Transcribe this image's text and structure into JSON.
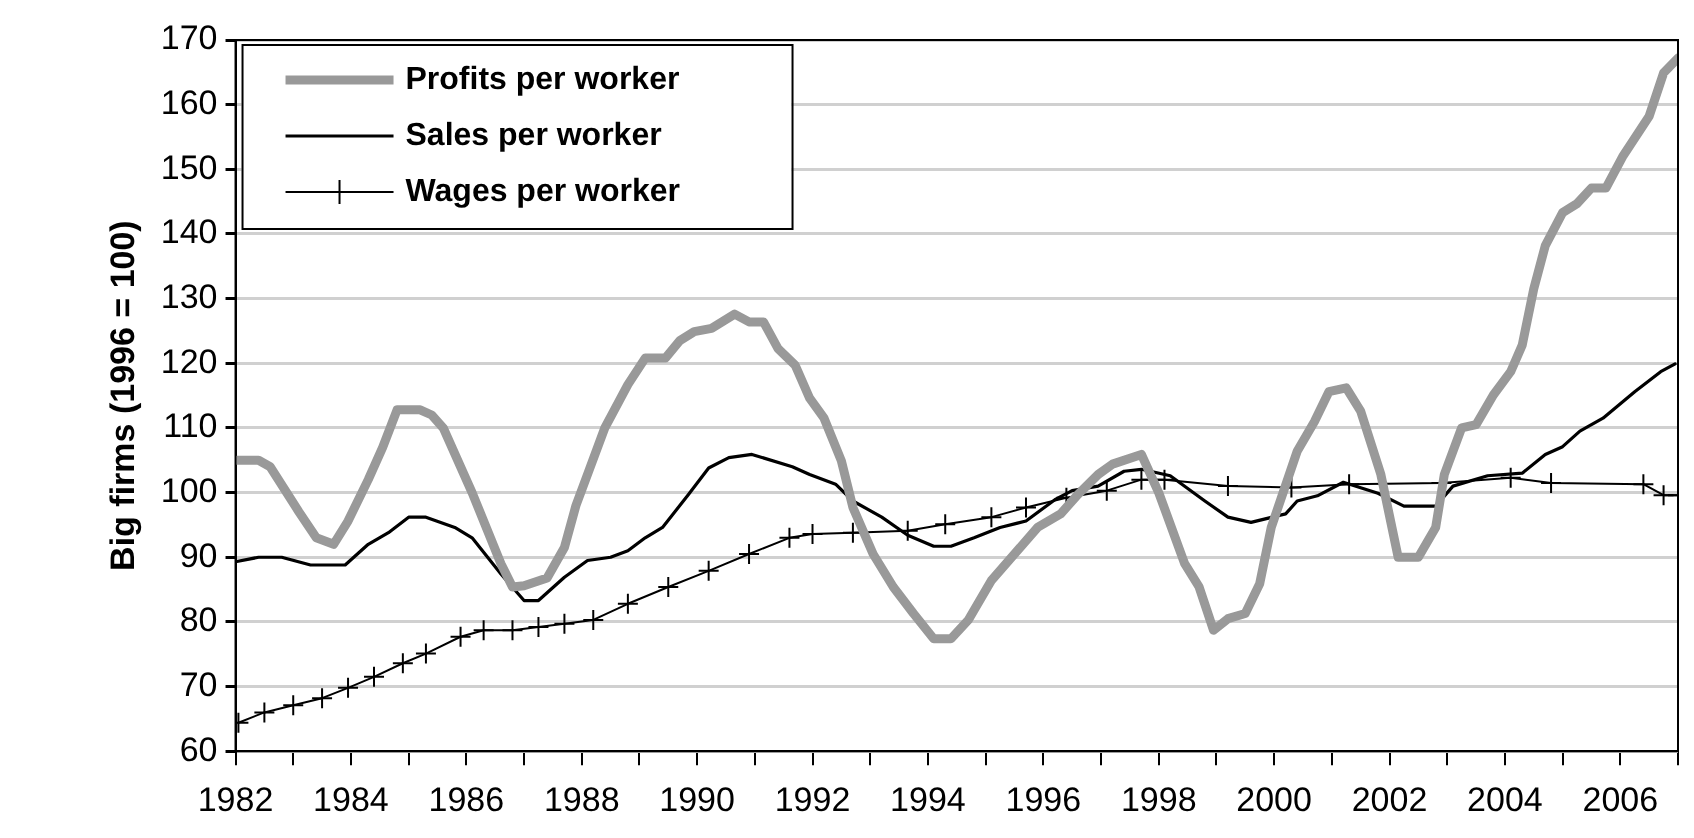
{
  "chart_data": {
    "type": "line",
    "ylabel": "Big firms (1996 = 100)",
    "xlim": [
      1982,
      2007
    ],
    "xticks": [
      1982,
      {
        "value": 1983,
        "label": null
      },
      1984,
      {
        "value": 1985,
        "label": null
      },
      1986,
      {
        "value": 1987,
        "label": null
      },
      1988,
      {
        "value": 1989,
        "label": null
      },
      1990,
      {
        "value": 1991,
        "label": null
      },
      1992,
      {
        "value": 1993,
        "label": null
      },
      1994,
      {
        "value": 1995,
        "label": null
      },
      1996,
      {
        "value": 1997,
        "label": null
      },
      1998,
      {
        "value": 1999,
        "label": null
      },
      2000,
      {
        "value": 2001,
        "label": null
      },
      2002,
      {
        "value": 2003,
        "label": null
      },
      2004,
      {
        "value": 2005,
        "label": null
      },
      2006,
      {
        "value": 2007,
        "label": null
      }
    ],
    "ylim": [
      60,
      170
    ],
    "yticks": [
      60,
      70,
      80,
      90,
      100,
      110,
      120,
      130,
      140,
      150,
      160,
      170
    ],
    "grid": "y",
    "legend": "top left",
    "series": [
      {
        "name": "Profits per worker",
        "color": "#999999",
        "marker": "none",
        "x": [
          1982.0,
          1982.4,
          1982.6,
          1983.1,
          1983.4,
          1983.7,
          1983.95,
          1984.3,
          1984.55,
          1984.8,
          1985.2,
          1985.4,
          1985.6,
          1986.1,
          1986.6,
          1986.8,
          1987.0,
          1987.4,
          1987.7,
          1987.9,
          1988.1,
          1988.4,
          1988.8,
          1989.1,
          1989.45,
          1989.7,
          1989.95,
          1990.25,
          1990.65,
          1990.9,
          1991.15,
          1991.4,
          1991.7,
          1991.95,
          1992.2,
          1992.5,
          1992.7,
          1993.05,
          1993.4,
          1993.75,
          1994.1,
          1994.4,
          1994.7,
          1995.1,
          1995.5,
          1995.9,
          1996.3,
          1996.6,
          1996.95,
          1997.2,
          1997.7,
          1998.0,
          1998.45,
          1998.7,
          1998.95,
          1999.2,
          1999.5,
          1999.75,
          1999.95,
          2000.4,
          2000.7,
          2000.95,
          2001.25,
          2001.5,
          2001.85,
          2002.15,
          2002.5,
          2002.8,
          2002.95,
          2003.25,
          2003.5,
          2003.8,
          2004.1,
          2004.3,
          2004.5,
          2004.7,
          2005.0,
          2005.25,
          2005.5,
          2005.75,
          2006.05,
          2006.5,
          2006.75,
          2007.0
        ],
        "values": [
          105,
          105,
          104,
          97,
          93,
          92,
          95.6,
          102,
          107,
          112.8,
          112.8,
          112,
          110,
          100,
          89,
          85.4,
          85.6,
          86.8,
          91.5,
          98,
          102.8,
          110,
          116.7,
          120.8,
          120.8,
          123.5,
          124.9,
          125.4,
          127.6,
          126.4,
          126.4,
          122.3,
          119.7,
          114.6,
          111.5,
          104.9,
          97.7,
          90.5,
          85.4,
          81.3,
          77.4,
          77.4,
          80.3,
          86.4,
          90.5,
          94.6,
          96.7,
          99.7,
          102.8,
          104.4,
          105.9,
          100,
          89,
          85.4,
          78.7,
          80.5,
          81.3,
          85.9,
          94.6,
          106.4,
          111,
          115.6,
          116.2,
          112.6,
          102.8,
          90,
          90,
          94.6,
          102.8,
          110,
          110.5,
          115.1,
          118.7,
          122.8,
          131.5,
          138.2,
          143.3,
          144.7,
          147.1,
          147.1,
          152.1,
          158.2,
          164.9,
          167.2
        ]
      },
      {
        "name": "Sales per worker",
        "color": "#000000",
        "marker": "none",
        "x": [
          1982.0,
          1982.4,
          1982.8,
          1983.3,
          1983.9,
          1984.3,
          1984.65,
          1985.0,
          1985.3,
          1985.8,
          1986.1,
          1986.6,
          1987.0,
          1987.25,
          1987.7,
          1988.1,
          1988.5,
          1988.8,
          1989.1,
          1989.4,
          1989.85,
          1990.2,
          1990.55,
          1990.95,
          1991.65,
          1991.95,
          1992.4,
          1992.7,
          1993.2,
          1993.65,
          1994.1,
          1994.4,
          1994.8,
          1995.25,
          1995.7,
          1996.2,
          1996.5,
          1996.95,
          1997.4,
          1997.7,
          1998.2,
          1998.8,
          1999.2,
          1999.6,
          2000.2,
          2000.4,
          2000.75,
          2001.2,
          2001.8,
          2002.25,
          2002.8,
          2003.1,
          2003.7,
          2004.3,
          2004.7,
          2005.0,
          2005.3,
          2005.7,
          2006.25,
          2006.7,
          2006.95
        ],
        "values": [
          89.3,
          90,
          90,
          88.8,
          88.8,
          92,
          93.8,
          96.2,
          96.2,
          94.6,
          93,
          87.4,
          83.3,
          83.3,
          86.9,
          89.5,
          90,
          91,
          93,
          94.6,
          99.7,
          103.8,
          105.4,
          105.9,
          104,
          102.8,
          101.3,
          98.7,
          96.2,
          93.4,
          91.7,
          91.7,
          93,
          94.6,
          95.6,
          98.9,
          100.3,
          101,
          103.3,
          103.6,
          102.6,
          98.7,
          96.2,
          95.4,
          96.7,
          98.7,
          99.5,
          101.6,
          99.9,
          97.9,
          97.9,
          101,
          102.6,
          103,
          105.9,
          107.1,
          109.5,
          111.5,
          115.6,
          118.7,
          119.9
        ]
      },
      {
        "name": "Wages per worker",
        "color": "#000000",
        "marker": "cross",
        "x": [
          1982.05,
          1982.5,
          1983.0,
          1983.5,
          1983.95,
          1984.4,
          1984.9,
          1985.3,
          1985.9,
          1986.3,
          1986.8,
          1987.25,
          1987.7,
          1988.2,
          1988.8,
          1989.5,
          1990.2,
          1990.9,
          1991.6,
          1992.0,
          1992.7,
          1993.65,
          1994.3,
          1995.1,
          1995.7,
          1996.4,
          1997.1,
          1997.7,
          1998.1,
          1999.2,
          2000.3,
          2001.3,
          2002.9,
          2004.1,
          2004.8,
          2006.4,
          2006.75,
          2007.0
        ],
        "values": [
          64.4,
          66,
          67.1,
          68.2,
          69.8,
          71.5,
          73.6,
          75.1,
          77.7,
          78.7,
          78.7,
          79.2,
          79.7,
          80.3,
          82.8,
          85.4,
          87.9,
          90.5,
          93,
          93.6,
          93.8,
          94.1,
          95.1,
          96.2,
          97.7,
          99.2,
          100.3,
          102,
          102,
          101,
          100.8,
          101.3,
          101.5,
          102.3,
          101.5,
          101.3,
          99.6,
          99.6
        ]
      }
    ]
  }
}
